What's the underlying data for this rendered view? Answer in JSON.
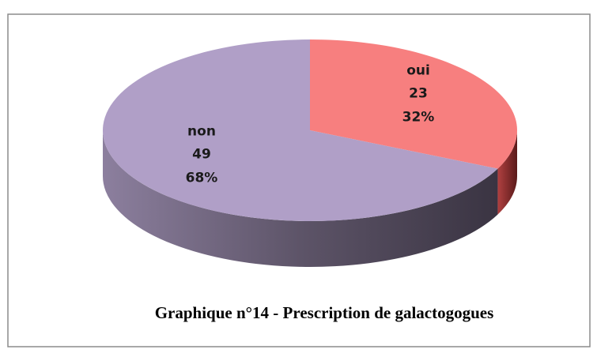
{
  "chart_data": {
    "type": "pie",
    "title": "Graphique n°14 - Prescription de galactogogues",
    "categories": [
      "oui",
      "non"
    ],
    "values": [
      23,
      49
    ],
    "percent_labels": [
      "32%",
      "68%"
    ],
    "colors": [
      "#f77f7f",
      "#b09fc7"
    ]
  }
}
